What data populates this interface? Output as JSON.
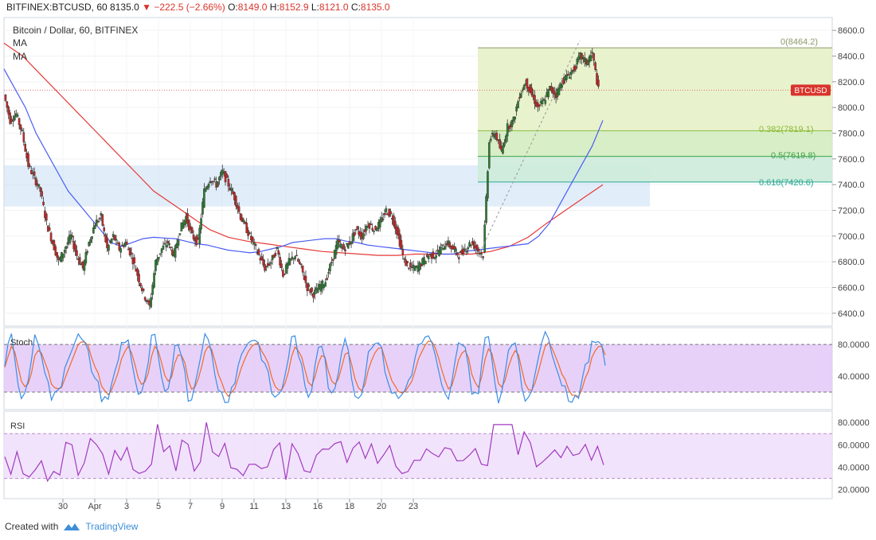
{
  "header": {
    "symbol": "BITFINEX:BTCUSD, 60",
    "last": "8135.0",
    "change": "−222.5 (−2.66%)",
    "o_label": "O:",
    "o_val": "8149.0",
    "h_label": "H:",
    "h_val": "8152.9",
    "l_label": "L:",
    "l_val": "8121.0",
    "c_label": "C:",
    "c_val": "8135.0"
  },
  "legend": {
    "title": "Bitcoin / Dollar, 60, BITFINEX",
    "ma1": "MA",
    "ma2": "MA"
  },
  "price_badge": "BTCUSD",
  "fib": {
    "f0": "0(8464.2)",
    "f382": "0.382(7819.1)",
    "f5": "0.5(7619.8)",
    "f618": "0.618(7420.6)"
  },
  "stoch_label": "Stoch",
  "rsi_label": "RSI",
  "footer": {
    "created": "Created with",
    "brand": "TradingView"
  },
  "colors": {
    "up": "#2e7d32",
    "down": "#c62828",
    "ma_fast": "#4a5cf5",
    "ma_slow": "#e53935",
    "stoch_k": "#3b8de6",
    "stoch_d": "#f06a2b",
    "rsi": "#a23ac0",
    "fib_zone": "#ddeeb4",
    "support_zone": "#c9def4"
  },
  "chart_data": {
    "type": "candlestick",
    "price_axis": {
      "min": 6300,
      "max": 8700,
      "ticks": [
        6400,
        6600,
        6800,
        7000,
        7200,
        7400,
        7600,
        7800,
        8000,
        8200,
        8400,
        8600
      ]
    },
    "x_axis": {
      "ticks": [
        "30",
        "Apr",
        "3",
        "5",
        "7",
        "9",
        "11",
        "13",
        "16",
        "18",
        "20",
        "23"
      ]
    },
    "last_price": 8135,
    "price_series": [
      8100,
      7900,
      7950,
      7800,
      7550,
      7450,
      7350,
      7100,
      6950,
      6800,
      6900,
      7000,
      6850,
      6750,
      6950,
      7100,
      7150,
      6900,
      7000,
      6900,
      6950,
      6850,
      6700,
      6550,
      6450,
      6800,
      6900,
      6950,
      6850,
      7050,
      7150,
      7000,
      6950,
      7350,
      7450,
      7400,
      7500,
      7400,
      7300,
      7150,
      7050,
      6950,
      6850,
      6750,
      6800,
      6900,
      6700,
      6800,
      6850,
      6750,
      6600,
      6550,
      6600,
      6650,
      6800,
      6950,
      6900,
      6950,
      7050,
      7000,
      7100,
      7050,
      7100,
      7200,
      7150,
      7000,
      6800,
      6750,
      6750,
      6800,
      6850,
      6850,
      6900,
      6950,
      6900,
      6850,
      6900,
      6950,
      6900,
      6850,
      7750,
      7800,
      7650,
      7850,
      7900,
      8100,
      8200,
      8100,
      8000,
      8050,
      8150,
      8100,
      8200,
      8250,
      8300,
      8400,
      8350,
      8420,
      8135
    ],
    "ma_fast": [
      8300,
      8150,
      8000,
      7800,
      7650,
      7500,
      7350,
      7250,
      7150,
      7050,
      6950,
      6920,
      6950,
      6980,
      6990,
      6985,
      6980,
      6960,
      6940,
      6930,
      6910,
      6890,
      6880,
      6870,
      6880,
      6900,
      6920,
      6950,
      6960,
      6970,
      6980,
      6980,
      6960,
      6950,
      6930,
      6920,
      6910,
      6900,
      6890,
      6880,
      6870,
      6860,
      6860,
      6880,
      6890,
      6900,
      6910,
      6920,
      6930,
      6940,
      7000,
      7100,
      7250,
      7400,
      7550,
      7700,
      7900
    ],
    "ma_slow": [
      8500,
      8400,
      8250,
      8100,
      7950,
      7800,
      7650,
      7500,
      7350,
      7250,
      7150,
      7050,
      6990,
      6960,
      6940,
      6920,
      6900,
      6880,
      6870,
      6860,
      6850,
      6850,
      6860,
      6860,
      6860,
      6860,
      6880,
      6920,
      6990,
      7100,
      7200,
      7300,
      7400
    ],
    "fib": [
      {
        "level": "0",
        "value": 8464.2
      },
      {
        "level": "0.382",
        "value": 7819.1
      },
      {
        "level": "0.5",
        "value": 7619.8
      },
      {
        "level": "0.618",
        "value": 7420.6
      }
    ],
    "support_zone": [
      7230,
      7550
    ],
    "stoch": {
      "ticks": [
        40,
        80
      ],
      "upper": 80,
      "lower": 20
    },
    "rsi": {
      "ticks": [
        20,
        40,
        60,
        80
      ],
      "upper": 70,
      "lower": 30,
      "last": 42
    }
  }
}
